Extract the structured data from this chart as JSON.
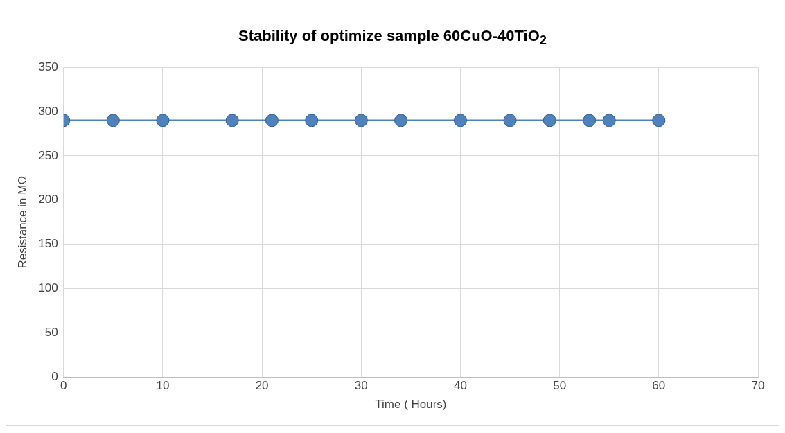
{
  "chart_data": {
    "type": "line",
    "title": "Stability of optimize sample 60CuO-40TiO$_{2}$",
    "xlabel": "Time ( Hours)",
    "ylabel": "Resistance in MΩ",
    "x": [
      0,
      5,
      10,
      17,
      21,
      25,
      30,
      34,
      40,
      45,
      49,
      53,
      55,
      60
    ],
    "series": [
      {
        "color": "#4f81bd",
        "values": [
          290,
          290,
          290,
          290,
          290,
          290,
          290,
          290,
          290,
          290,
          290,
          290,
          290,
          290
        ]
      }
    ],
    "xlim": [
      0,
      70
    ],
    "xticks": [
      0,
      10,
      20,
      30,
      40,
      50,
      60,
      70
    ],
    "ylim": [
      0,
      350
    ],
    "yticks": [
      0,
      50,
      100,
      150,
      200,
      250,
      300,
      350
    ],
    "grid": true,
    "legend": false,
    "marker": "circle",
    "line_style": "solid"
  }
}
